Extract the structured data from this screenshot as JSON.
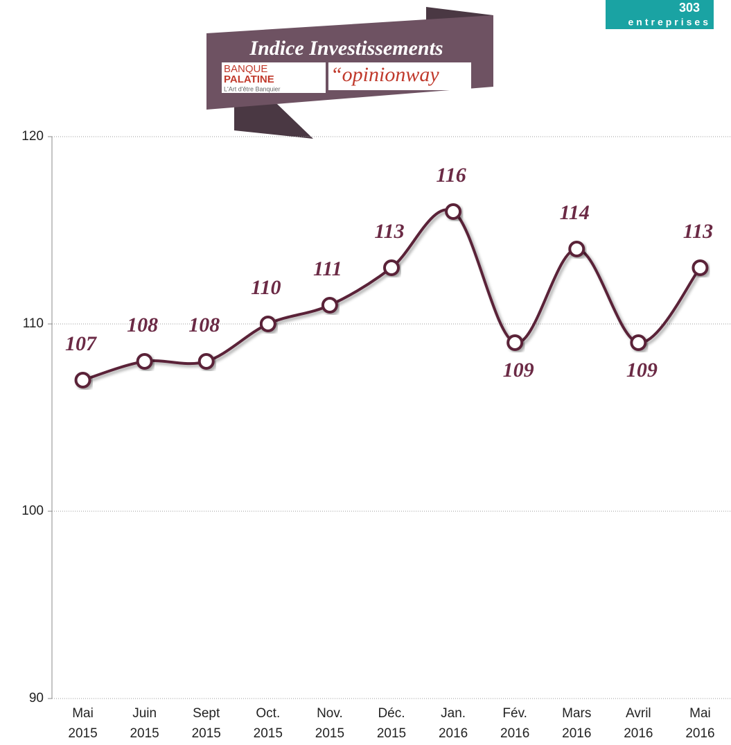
{
  "chart_data": {
    "type": "line",
    "title": "Indice Investissements",
    "categories": [
      "Mai 2015",
      "Juin 2015",
      "Sept 2015",
      "Oct. 2015",
      "Nov. 2015",
      "Déc. 2015",
      "Jan. 2016",
      "Fév. 2016",
      "Mars 2016",
      "Avril 2016",
      "Mai 2016"
    ],
    "values": [
      107,
      108,
      108,
      110,
      111,
      113,
      116,
      109,
      114,
      109,
      113
    ],
    "color": "#5a2238",
    "ylim": [
      90,
      120
    ],
    "yticks": [
      90,
      100,
      110,
      120
    ],
    "grid": true
  },
  "logos": {
    "bank_top": "BANQUE",
    "bank_name": "PALATINE",
    "bank_tagline": "L'Art d'être Banquier",
    "pollster": "“opinionway"
  },
  "badge": {
    "number": "303",
    "label": "entreprises"
  }
}
